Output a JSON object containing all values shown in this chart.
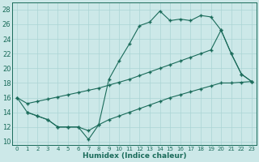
{
  "xlabel": "Humidex (Indice chaleur)",
  "xlim": [
    -0.5,
    23.5
  ],
  "ylim": [
    9.5,
    29
  ],
  "xticks": [
    0,
    1,
    2,
    3,
    4,
    5,
    6,
    7,
    8,
    9,
    10,
    11,
    12,
    13,
    14,
    15,
    16,
    17,
    18,
    19,
    20,
    21,
    22,
    23
  ],
  "yticks": [
    10,
    12,
    14,
    16,
    18,
    20,
    22,
    24,
    26,
    28
  ],
  "bg_color": "#cce8e8",
  "line_color": "#1a6b5a",
  "grid_color": "#aad4d4",
  "line1_x": [
    0,
    1,
    2,
    3,
    4,
    5,
    6,
    7,
    8,
    9,
    10,
    11,
    12,
    13,
    14,
    15,
    16,
    17,
    18,
    19,
    20,
    21,
    22,
    23
  ],
  "line1_y": [
    16,
    14,
    13.5,
    13,
    12,
    12,
    12,
    10.3,
    12.3,
    18.5,
    21,
    23.3,
    25.8,
    26.3,
    27.8,
    26.5,
    26.7,
    26.5,
    27.2,
    27,
    25.2,
    22,
    19.2,
    18.2
  ],
  "line2_x": [
    0,
    1,
    2,
    3,
    4,
    5,
    6,
    7,
    8,
    9,
    10,
    11,
    12,
    13,
    14,
    15,
    16,
    17,
    18,
    19,
    20,
    21,
    22,
    23
  ],
  "line2_y": [
    16,
    15.2,
    15.5,
    15.8,
    16.1,
    16.4,
    16.7,
    17.0,
    17.3,
    17.7,
    18.1,
    18.5,
    19.0,
    19.5,
    20.0,
    20.5,
    21.0,
    21.5,
    22.0,
    22.5,
    25.2,
    22,
    19.2,
    18.2
  ],
  "line3_x": [
    1,
    2,
    3,
    4,
    5,
    6,
    7,
    8,
    9,
    10,
    11,
    12,
    13,
    14,
    15,
    16,
    17,
    18,
    19,
    20,
    21,
    22,
    23
  ],
  "line3_y": [
    14,
    13.5,
    13,
    12,
    12,
    12,
    11.5,
    12.3,
    13.0,
    13.5,
    14.0,
    14.5,
    15.0,
    15.5,
    16.0,
    16.4,
    16.8,
    17.2,
    17.6,
    18.0,
    18.0,
    18.1,
    18.2
  ]
}
